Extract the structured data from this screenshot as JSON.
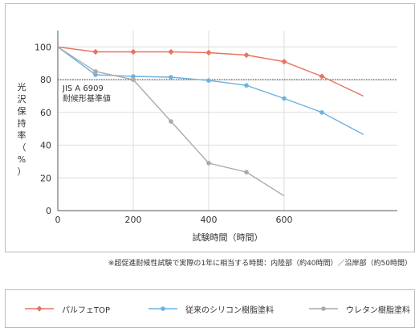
{
  "chart_data": {
    "type": "line",
    "xlabel": "試験時間（時間）",
    "ylabel": "光沢保持率（%）",
    "xlim": [
      0,
      900
    ],
    "ylim": [
      0,
      110
    ],
    "x_ticks": [
      0,
      200,
      400,
      600
    ],
    "y_ticks": [
      0,
      20,
      40,
      60,
      80,
      100
    ],
    "reference_line": {
      "value": 80,
      "label_1": "JIS A 6909",
      "label_2": "耐候形基準値"
    },
    "series": [
      {
        "name": "パルフェTOP",
        "color": "#e8735e",
        "marker": "diamond",
        "x": [
          0,
          100,
          200,
          300,
          400,
          500,
          600,
          700,
          810
        ],
        "y": [
          100,
          97,
          97,
          97,
          96.5,
          95,
          91,
          82,
          70
        ]
      },
      {
        "name": "従来のシリコン樹脂塗料",
        "color": "#6fb2e0",
        "marker": "circle",
        "x": [
          0,
          100,
          200,
          300,
          400,
          500,
          600,
          700,
          810
        ],
        "y": [
          100,
          83,
          82,
          81.5,
          79.5,
          76.5,
          68.5,
          60,
          46.5
        ]
      },
      {
        "name": "ウレタン樹脂塗料",
        "color": "#aaaaaa",
        "marker": "circle",
        "x": [
          0,
          100,
          200,
          300,
          400,
          500,
          600
        ],
        "y": [
          100,
          85,
          80,
          54.5,
          29,
          23.5,
          9
        ]
      }
    ]
  },
  "footnote": "※超促進耐候性試験で実際の1年に相当する時間：内陸部（約40時間）／沿岸部（約50時間）"
}
